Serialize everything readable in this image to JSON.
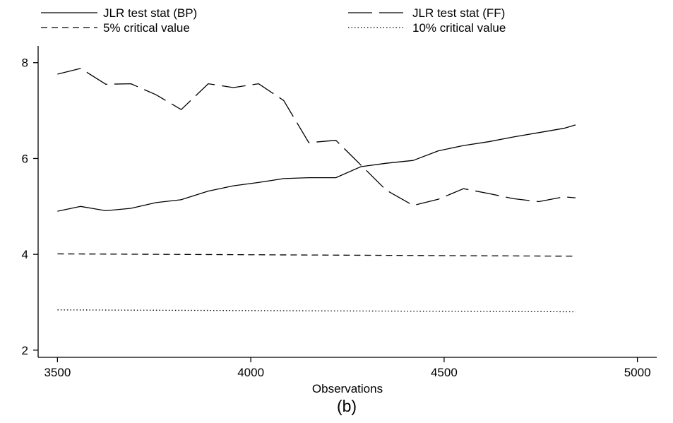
{
  "chart_data": {
    "type": "line",
    "title": "",
    "caption": "(b)",
    "xlabel": "Observations",
    "ylabel": "",
    "xlim": [
      3450,
      5050
    ],
    "ylim": [
      1.85,
      8.35
    ],
    "xticks": [
      3500,
      4000,
      4500,
      5000
    ],
    "yticks": [
      2,
      4,
      6,
      8
    ],
    "grid": false,
    "legend_position": "top",
    "series": [
      {
        "name": "JLR test stat (BP)",
        "style": "solid",
        "x": [
          3500,
          3560,
          3625,
          3690,
          3755,
          3820,
          3890,
          3955,
          4020,
          4085,
          4150,
          4220,
          4285,
          4350,
          4420,
          4485,
          4550,
          4615,
          4680,
          4745,
          4810,
          4840
        ],
        "y": [
          4.9,
          5.0,
          4.91,
          4.96,
          5.08,
          5.14,
          5.32,
          5.43,
          5.5,
          5.58,
          5.6,
          5.6,
          5.83,
          5.9,
          5.96,
          6.16,
          6.27,
          6.35,
          6.45,
          6.54,
          6.63,
          6.7
        ]
      },
      {
        "name": "JLR test stat (FF)",
        "style": "longdash",
        "x": [
          3500,
          3560,
          3625,
          3690,
          3755,
          3820,
          3890,
          3955,
          4020,
          4085,
          4150,
          4220,
          4285,
          4350,
          4420,
          4485,
          4550,
          4615,
          4680,
          4745,
          4810,
          4840
        ],
        "y": [
          7.76,
          7.88,
          7.55,
          7.56,
          7.33,
          7.02,
          7.56,
          7.48,
          7.56,
          7.21,
          6.33,
          6.38,
          5.86,
          5.34,
          5.02,
          5.15,
          5.37,
          5.27,
          5.16,
          5.1,
          5.2,
          5.18
        ]
      },
      {
        "name": "5% critical value",
        "style": "dash",
        "x": [
          3500,
          4840
        ],
        "y": [
          4.01,
          3.96
        ]
      },
      {
        "name": "10% critical value",
        "style": "dot",
        "x": [
          3500,
          4840
        ],
        "y": [
          2.84,
          2.8
        ]
      }
    ]
  }
}
